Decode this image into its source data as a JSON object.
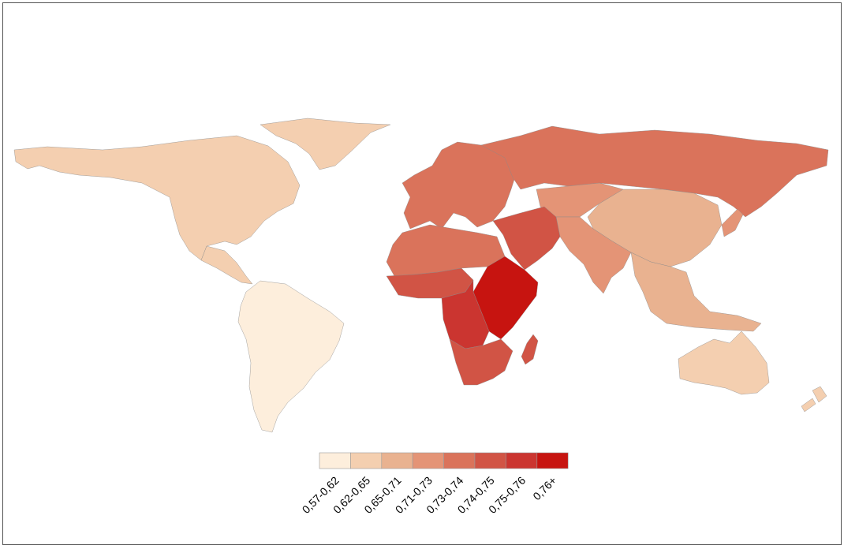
{
  "map": {
    "legend": {
      "labels": [
        "0,57-0,62",
        "0,62-0,65",
        "0,65-0,71",
        "0,71-0,73",
        "0,73-0,74",
        "0,74-0,75",
        "0,75-0,76",
        "0,76+"
      ],
      "colors": [
        "#fdeedc",
        "#f4cfb0",
        "#e9b290",
        "#e49476",
        "#da735b",
        "#d15445",
        "#cb3530",
        "#c71410"
      ]
    },
    "regions": [
      {
        "name": "North America",
        "class": 1
      },
      {
        "name": "Greenland",
        "class": 1
      },
      {
        "name": "Central America",
        "class": 1
      },
      {
        "name": "South America",
        "class": 0
      },
      {
        "name": "Europe",
        "class": 4
      },
      {
        "name": "Russia",
        "class": 4
      },
      {
        "name": "Central Asia",
        "class": 3
      },
      {
        "name": "China",
        "class": 2
      },
      {
        "name": "South Asia",
        "class": 3
      },
      {
        "name": "Southeast Asia",
        "class": 2
      },
      {
        "name": "Middle East",
        "class": 5
      },
      {
        "name": "North Africa",
        "class": 4
      },
      {
        "name": "Sahel",
        "class": 5
      },
      {
        "name": "East Africa",
        "class": 7
      },
      {
        "name": "Central Africa",
        "class": 6
      },
      {
        "name": "Southern Africa",
        "class": 5
      },
      {
        "name": "Madagascar",
        "class": 5
      },
      {
        "name": "Australia",
        "class": 1
      },
      {
        "name": "New Zealand",
        "class": 1
      },
      {
        "name": "Japan",
        "class": 3
      }
    ]
  }
}
